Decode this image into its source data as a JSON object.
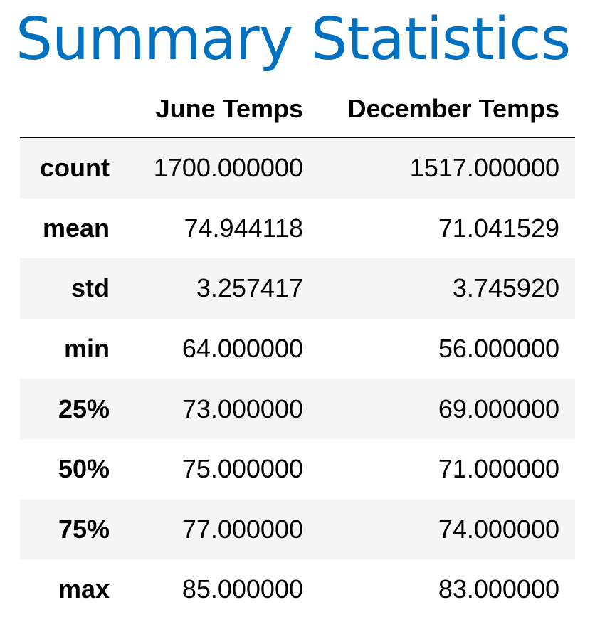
{
  "title": "Summary Statistics",
  "table": {
    "columns": [
      "",
      "June Temps",
      "December Temps"
    ],
    "rows": [
      {
        "label": "count",
        "june": "1700.000000",
        "december": "1517.000000"
      },
      {
        "label": "mean",
        "june": "74.944118",
        "december": "71.041529"
      },
      {
        "label": "std",
        "june": "3.257417",
        "december": "3.745920"
      },
      {
        "label": "min",
        "june": "64.000000",
        "december": "56.000000"
      },
      {
        "label": "25%",
        "june": "73.000000",
        "december": "69.000000"
      },
      {
        "label": "50%",
        "june": "75.000000",
        "december": "71.000000"
      },
      {
        "label": "75%",
        "june": "77.000000",
        "december": "74.000000"
      },
      {
        "label": "max",
        "june": "85.000000",
        "december": "83.000000"
      }
    ]
  },
  "colors": {
    "title": "#0070c0",
    "row_shade": "#f5f5f5",
    "text": "#000000"
  }
}
